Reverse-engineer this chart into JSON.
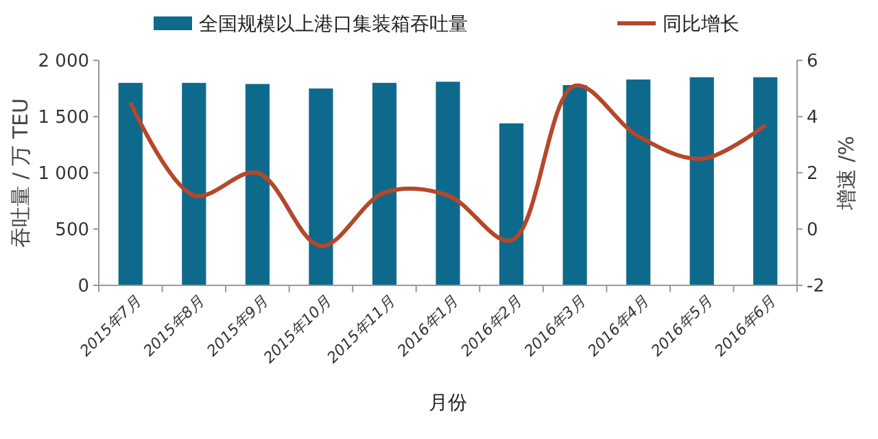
{
  "chart_data": {
    "type": "bar",
    "xlabel": "月份",
    "ylabel": "吞吐量 / 万 TEU",
    "y2label": "增速 /%",
    "categories": [
      "2015年7月",
      "2015年8月",
      "2015年9月",
      "2015年10月",
      "2015年11月",
      "2016年1月",
      "2016年2月",
      "2016年3月",
      "2016年4月",
      "2016年5月",
      "2016年6月"
    ],
    "series": [
      {
        "name": "全国规模以上港口集装箱吞吐量",
        "color": "#0e6a8c",
        "values": [
          1800,
          1800,
          1790,
          1750,
          1800,
          1810,
          1440,
          1780,
          1830,
          1850,
          1850
        ]
      },
      {
        "name": "同比增长",
        "type": "line",
        "axis": "y2",
        "color": "#b5472a",
        "values": [
          4.5,
          1.2,
          2.0,
          -0.6,
          1.3,
          1.2,
          -0.4,
          5.1,
          3.3,
          2.5,
          3.7
        ]
      }
    ],
    "ylim": [
      0,
      2000
    ],
    "yticks": [
      0,
      500,
      {
        "value": 1000,
        "label": "1 000"
      },
      {
        "value": 1500,
        "label": "1 500"
      },
      {
        "value": 2000,
        "label": "2 000"
      }
    ],
    "y2lim": [
      -2,
      6
    ],
    "y2ticks": [
      -2,
      0,
      2,
      4,
      6
    ],
    "legend": "top",
    "grid": false,
    "marker": "none",
    "line_style": "solid"
  }
}
